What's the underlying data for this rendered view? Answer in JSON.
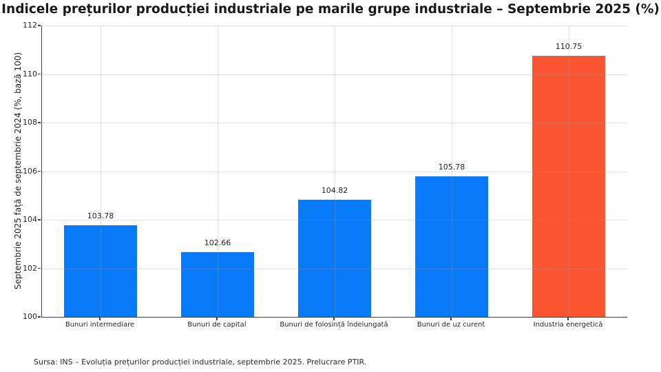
{
  "chart_data": {
    "type": "bar",
    "title": "Indicele prețurilor producției industriale pe marile grupe industriale – Septembrie 2025 (%)",
    "xlabel": "",
    "ylabel": "Septembrie 2025 față de septembrie 2024 (%, bază 100)",
    "categories": [
      "Bunuri intermediare",
      "Bunuri de capital",
      "Bunuri de folosință îndelungată",
      "Bunuri de uz curent",
      "Industria energetică"
    ],
    "values": [
      103.78,
      102.66,
      104.82,
      105.78,
      110.75
    ],
    "value_labels": [
      "103.78",
      "102.66",
      "104.82",
      "105.78",
      "110.75"
    ],
    "bar_colors": [
      "#077bf7",
      "#077bf7",
      "#077bf7",
      "#077bf7",
      "#fa5431"
    ],
    "ylim": [
      100,
      112
    ],
    "yticks": [
      100,
      102,
      104,
      106,
      108,
      110,
      112
    ],
    "grid": "both-axes, light gray, drawn above bars",
    "legend": "none"
  },
  "colors": {
    "bar_default": "#077bf7",
    "bar_highlight": "#fa5431",
    "spine": "#3f3f3f",
    "background": "#ffffff",
    "text": "#262626",
    "title_text": "#191919"
  },
  "footer": {
    "source": "Sursa: INS – Evoluția prețurilor producției industriale, septembrie 2025. Prelucrare PTIR."
  }
}
